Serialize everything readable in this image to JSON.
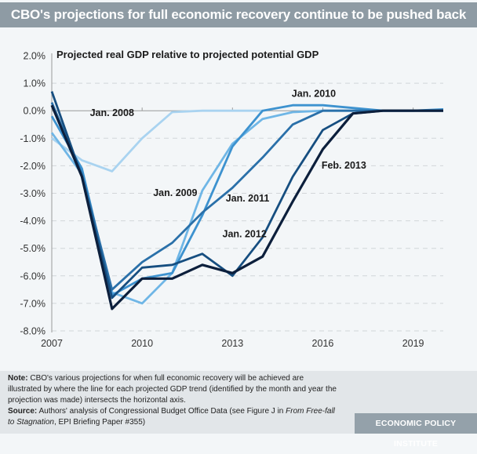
{
  "header": {
    "title": "CBO's projections for full economic recovery continue to be pushed back"
  },
  "chart_data": {
    "type": "line",
    "title": "CBO's projections for full economic recovery continue to be pushed back",
    "subtitle": "Projected real GDP relative to projected potential GDP",
    "xlabel": "",
    "ylabel": "",
    "x": [
      2007,
      2008,
      2009,
      2010,
      2011,
      2012,
      2013,
      2014,
      2015,
      2016,
      2017,
      2018,
      2019,
      2020
    ],
    "xlim": [
      2007,
      2020
    ],
    "ylim": [
      -8.0,
      2.0
    ],
    "x_ticks": [
      "2007",
      "2010",
      "2013",
      "2016",
      "2019"
    ],
    "y_ticks": [
      "2.0%",
      "1.0%",
      "0.0%",
      "-1.0%",
      "-2.0%",
      "-3.0%",
      "-4.0%",
      "-5.0%",
      "-6.0%",
      "-7.0%",
      "-8.0%"
    ],
    "grid": "horizontal dashed",
    "series": [
      {
        "name": "Jan. 2008",
        "color": "#a9d3f0",
        "values": [
          -1.0,
          -1.8,
          -2.2,
          -1.0,
          -0.05,
          0.0,
          0.0,
          0.0,
          null,
          null,
          null,
          null,
          null,
          null
        ]
      },
      {
        "name": "Jan. 2009",
        "color": "#6fb6e6",
        "values": [
          -0.8,
          -2.3,
          -6.6,
          -7.0,
          -5.9,
          -2.9,
          -1.2,
          -0.3,
          -0.05,
          0.0,
          0.0,
          0.0,
          null,
          null
        ]
      },
      {
        "name": "Jan. 2010",
        "color": "#3d92cf",
        "values": [
          -0.2,
          -2.1,
          -6.7,
          -6.1,
          -5.9,
          -3.8,
          -1.3,
          0.0,
          0.2,
          0.2,
          0.1,
          0.0,
          0.0,
          0.05
        ]
      },
      {
        "name": "Jan. 2011",
        "color": "#2a70a9",
        "values": [
          0.3,
          -2.3,
          -6.5,
          -5.5,
          -4.8,
          -3.7,
          -2.8,
          -1.7,
          -0.5,
          0.0,
          0.0,
          0.0,
          0.0,
          0.0
        ]
      },
      {
        "name": "Jan. 2012",
        "color": "#164e80",
        "values": [
          0.7,
          -2.4,
          -6.8,
          -5.7,
          -5.6,
          -5.2,
          -6.0,
          -4.6,
          -2.4,
          -0.7,
          -0.1,
          0.0,
          0.0,
          0.0
        ]
      },
      {
        "name": "Feb. 2013",
        "color": "#0c1f3c",
        "values": [
          0.2,
          -2.4,
          -7.2,
          -6.1,
          -6.1,
          -5.6,
          -5.9,
          -5.3,
          -3.3,
          -1.4,
          -0.1,
          0.0,
          0.0,
          0.0
        ]
      }
    ],
    "annotations": [
      {
        "text": "Jan. 2008",
        "x": 2009.0,
        "y": -0.2
      },
      {
        "text": "Jan. 2009",
        "x": 2011.1,
        "y": -3.1
      },
      {
        "text": "Jan. 2010",
        "x": 2015.7,
        "y": 0.5
      },
      {
        "text": "Jan. 2011",
        "x": 2013.5,
        "y": -3.3
      },
      {
        "text": "Jan. 2012",
        "x": 2013.4,
        "y": -4.6
      },
      {
        "text": "Feb. 2013",
        "x": 2016.7,
        "y": -2.1
      }
    ]
  },
  "footer": {
    "note_label": "Note:",
    "note_text": " CBO's various projections for when full economic recovery will be achieved are illustrated by where the line for each projected GDP trend (identified by the month and year the projection was made) intersects the horizontal axis.",
    "source_label": "Source:",
    "source_text": " Authors' analysis of Congressional Budget Office Data (see Figure J in ",
    "source_italic": "From Free-fall to Stagnation",
    "source_tail": ", EPI Briefing Paper #355)",
    "brand": "ECONOMIC POLICY INSTITUTE"
  }
}
